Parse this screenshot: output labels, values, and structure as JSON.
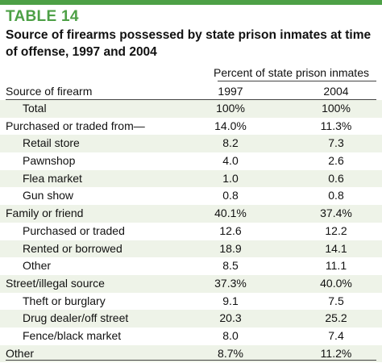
{
  "colors": {
    "accent": "#4da046",
    "row_shade": "#eef3e8"
  },
  "table": {
    "label": "TABLE 14",
    "caption": "Source of firearms possessed by state prison inmates at time of offense, 1997 and 2004",
    "column_group": "Percent of state prison inmates",
    "headers": {
      "source": "Source of firearm",
      "year1": "1997",
      "year2": "2004"
    },
    "rows": [
      {
        "label": "Total",
        "v1997": "100%",
        "v2004": "100%"
      },
      {
        "label": "Purchased or traded from—",
        "v1997": "14.0%",
        "v2004": "11.3%"
      },
      {
        "label": "Retail store",
        "v1997": "8.2",
        "v2004": "7.3"
      },
      {
        "label": "Pawnshop",
        "v1997": "4.0",
        "v2004": "2.6"
      },
      {
        "label": "Flea market",
        "v1997": "1.0",
        "v2004": "0.6"
      },
      {
        "label": "Gun show",
        "v1997": "0.8",
        "v2004": "0.8"
      },
      {
        "label": "Family or friend",
        "v1997": "40.1%",
        "v2004": "37.4%"
      },
      {
        "label": "Purchased or traded",
        "v1997": "12.6",
        "v2004": "12.2"
      },
      {
        "label": "Rented or borrowed",
        "v1997": "18.9",
        "v2004": "14.1"
      },
      {
        "label": "Other",
        "v1997": "8.5",
        "v2004": "11.1"
      },
      {
        "label": "Street/illegal source",
        "v1997": "37.3%",
        "v2004": "40.0%"
      },
      {
        "label": "Theft or burglary",
        "v1997": "9.1",
        "v2004": "7.5"
      },
      {
        "label": "Drug dealer/off street",
        "v1997": "20.3",
        "v2004": "25.2"
      },
      {
        "label": "Fence/black market",
        "v1997": "8.0",
        "v2004": "7.4"
      },
      {
        "label": "Other",
        "v1997": "8.7%",
        "v2004": "11.2%"
      }
    ]
  }
}
